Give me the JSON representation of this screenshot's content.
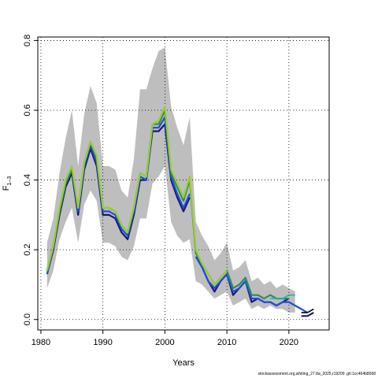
{
  "chart_data": {
    "type": "line",
    "xlabel": "Years",
    "ylabel_main": "F",
    "ylabel_sub": "1–3",
    "xlim": [
      1979.5,
      2026.5
    ],
    "ylim": [
      -0.03,
      0.81
    ],
    "x_ticks": [
      1980,
      1990,
      2000,
      2010,
      2020
    ],
    "y_ticks": [
      0.0,
      0.2,
      0.4,
      0.6,
      0.8
    ],
    "x_tick_labels": [
      "1980",
      "1990",
      "2000",
      "2010",
      "2020"
    ],
    "y_tick_labels": [
      "0.0",
      "0.2",
      "0.4",
      "0.6",
      "0.8"
    ],
    "grid": true,
    "ci_band": {
      "color": "#bebebe",
      "x": [
        1981,
        1982,
        1983,
        1984,
        1985,
        1986,
        1987,
        1988,
        1989,
        1990,
        1991,
        1992,
        1993,
        1994,
        1995,
        1996,
        1997,
        1998,
        1999,
        2000,
        2001,
        2002,
        2003,
        2004,
        2005,
        2006,
        2007,
        2008,
        2009,
        2010,
        2011,
        2012,
        2013,
        2014,
        2015,
        2016,
        2017,
        2018,
        2019,
        2020,
        2021
      ],
      "upper": [
        0.22,
        0.29,
        0.42,
        0.52,
        0.6,
        0.44,
        0.59,
        0.67,
        0.62,
        0.44,
        0.44,
        0.43,
        0.37,
        0.35,
        0.46,
        0.66,
        0.66,
        0.72,
        0.77,
        0.78,
        0.61,
        0.55,
        0.5,
        0.58,
        0.28,
        0.24,
        0.21,
        0.17,
        0.19,
        0.22,
        0.14,
        0.15,
        0.17,
        0.11,
        0.12,
        0.1,
        0.11,
        0.09,
        0.1,
        0.09,
        0.08
      ],
      "lower": [
        0.09,
        0.14,
        0.23,
        0.28,
        0.32,
        0.22,
        0.33,
        0.37,
        0.34,
        0.22,
        0.22,
        0.21,
        0.18,
        0.17,
        0.21,
        0.29,
        0.29,
        0.39,
        0.41,
        0.44,
        0.28,
        0.24,
        0.22,
        0.23,
        0.11,
        0.1,
        0.08,
        0.06,
        0.07,
        0.08,
        0.04,
        0.05,
        0.06,
        0.03,
        0.04,
        0.03,
        0.04,
        0.03,
        0.03,
        0.02,
        0.02
      ]
    },
    "series": [
      {
        "color": "#191970",
        "segments": [
          {
            "x": [
              1981,
              1982,
              1983,
              1984,
              1985,
              1986,
              1987,
              1988,
              1989,
              1990,
              1991,
              1992,
              1993,
              1994,
              1995,
              1996,
              1997,
              1998,
              1999,
              2000,
              2001,
              2002,
              2003,
              2004
            ],
            "y": [
              0.13,
              0.2,
              0.3,
              0.38,
              0.42,
              0.3,
              0.43,
              0.49,
              0.44,
              0.3,
              0.3,
              0.29,
              0.25,
              0.23,
              0.3,
              0.4,
              0.4,
              0.54,
              0.54,
              0.56,
              0.4,
              0.35,
              0.31,
              0.35
            ]
          },
          {
            "x": [
              2005,
              2006,
              2007,
              2008,
              2009,
              2010,
              2011,
              2012,
              2013,
              2014,
              2015,
              2016,
              2017,
              2018,
              2019,
              2020
            ],
            "y": [
              0.18,
              0.15,
              0.11,
              0.08,
              0.11,
              0.13,
              0.07,
              0.09,
              0.11,
              0.05,
              0.06,
              0.05,
              0.05,
              0.04,
              0.05,
              0.06
            ]
          },
          {
            "x": [
              2022,
              2023,
              2024
            ],
            "y": [
              0.01,
              0.01,
              0.02
            ]
          }
        ]
      },
      {
        "color": "#1f4fd8",
        "segments": [
          {
            "x": [
              1981,
              1982,
              1983,
              1984,
              1985,
              1986,
              1987,
              1988,
              1989,
              1990,
              1991,
              1992,
              1993,
              1994,
              1995,
              1996,
              1997,
              1998,
              1999,
              2000,
              2001,
              2002,
              2003,
              2004
            ],
            "y": [
              0.13,
              0.21,
              0.31,
              0.39,
              0.43,
              0.31,
              0.44,
              0.5,
              0.45,
              0.31,
              0.31,
              0.3,
              0.26,
              0.24,
              0.31,
              0.41,
              0.4,
              0.55,
              0.55,
              0.58,
              0.41,
              0.36,
              0.32,
              0.36
            ]
          },
          {
            "x": [
              2005,
              2006,
              2007,
              2008,
              2009,
              2010,
              2011,
              2012,
              2013,
              2014,
              2015,
              2016,
              2017,
              2018,
              2019,
              2020,
              2021,
              2022,
              2023
            ],
            "y": [
              0.18,
              0.15,
              0.11,
              0.09,
              0.11,
              0.13,
              0.08,
              0.09,
              0.11,
              0.06,
              0.06,
              0.05,
              0.05,
              0.04,
              0.05,
              0.05,
              0.04,
              0.03,
              0.02
            ]
          }
        ]
      },
      {
        "color": "#2e8b57",
        "segments": [
          {
            "x": [
              1981,
              1982,
              1983,
              1984,
              1985,
              1986,
              1987,
              1988,
              1989,
              1990,
              1991,
              1992,
              1993,
              1994,
              1995,
              1996,
              1997,
              1998,
              1999,
              2000,
              2001,
              2002,
              2003,
              2004,
              2005,
              2006,
              2007,
              2008,
              2009,
              2010,
              2011,
              2012,
              2013,
              2014,
              2015,
              2016,
              2017,
              2018,
              2019,
              2020
            ],
            "y": [
              0.14,
              0.21,
              0.31,
              0.39,
              0.43,
              0.32,
              0.45,
              0.51,
              0.46,
              0.32,
              0.32,
              0.31,
              0.27,
              0.25,
              0.32,
              0.42,
              0.41,
              0.56,
              0.56,
              0.6,
              0.42,
              0.38,
              0.34,
              0.4,
              0.19,
              0.16,
              0.13,
              0.1,
              0.12,
              0.14,
              0.09,
              0.1,
              0.12,
              0.07,
              0.07,
              0.06,
              0.07,
              0.06,
              0.06,
              0.06
            ]
          }
        ]
      },
      {
        "color": "#9acd32",
        "segments": [
          {
            "x": [
              1981,
              1982,
              1983,
              1984,
              1985,
              1986,
              1987,
              1988,
              1989,
              1990,
              1991,
              1992,
              1993,
              1994,
              1995,
              1996,
              1997,
              1998,
              1999,
              2000,
              2001,
              2002,
              2003,
              2004,
              2005,
              2006,
              2007,
              2008,
              2009,
              2010
            ],
            "y": [
              0.14,
              0.21,
              0.32,
              0.4,
              0.44,
              0.32,
              0.45,
              0.51,
              0.47,
              0.32,
              0.32,
              0.31,
              0.27,
              0.25,
              0.32,
              0.42,
              0.41,
              0.56,
              0.57,
              0.61,
              0.43,
              0.39,
              0.35,
              0.41,
              0.2,
              0.16,
              0.13,
              0.1,
              0.12,
              0.14
            ]
          }
        ]
      },
      {
        "color": "#20b2aa",
        "segments": [
          {
            "x": [
              2017,
              2018,
              2019,
              2020,
              2021
            ],
            "y": [
              0.06,
              0.06,
              0.06,
              0.07,
              0.07
            ]
          }
        ]
      },
      {
        "color": "#000000",
        "segments": [
          {
            "x": [
              2022,
              2023,
              2024
            ],
            "y": [
              0.02,
              0.02,
              0.03
            ]
          }
        ]
      }
    ]
  },
  "footer": {
    "text": "stockassessment.org,whiting_27.8a_2025,r19209 ,git:1cc464b8068"
  }
}
